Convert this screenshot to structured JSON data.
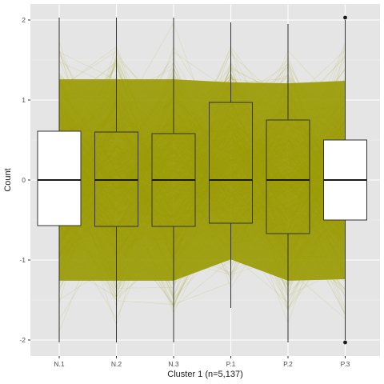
{
  "chart_data": {
    "type": "parallel-coordinates",
    "xlabel": "Cluster 1 (n=5,137)",
    "ylabel": "Count",
    "categories": [
      "N.1",
      "N.2",
      "N.3",
      "P.1",
      "P.2",
      "P.3"
    ],
    "yticks": [
      -2,
      -1,
      0,
      1,
      2
    ],
    "ylim": [
      -2.2,
      2.2
    ],
    "n": 5137,
    "line_color": "#999900",
    "panel_background": "#e5e5e5",
    "grid": true,
    "boxplots": [
      {
        "category": "N.1",
        "q1": -0.57,
        "median": 0.0,
        "q3": 0.61,
        "lower_whisker": -2.03,
        "upper_whisker": 2.03
      },
      {
        "category": "N.2",
        "q1": -0.58,
        "median": 0.0,
        "q3": 0.6,
        "lower_whisker": -2.03,
        "upper_whisker": 2.03
      },
      {
        "category": "N.3",
        "q1": -0.58,
        "median": 0.0,
        "q3": 0.58,
        "lower_whisker": -2.03,
        "upper_whisker": 2.03
      },
      {
        "category": "P.1",
        "q1": -0.54,
        "median": 0.0,
        "q3": 0.97,
        "lower_whisker": -1.6,
        "upper_whisker": 1.97
      },
      {
        "category": "P.2",
        "q1": -0.67,
        "median": 0.0,
        "q3": 0.75,
        "lower_whisker": -2.03,
        "upper_whisker": 1.95
      },
      {
        "category": "P.3",
        "q1": -0.5,
        "median": 0.0,
        "q3": 0.5,
        "lower_whisker": -2.0,
        "upper_whisker": 2.0,
        "outliers": [
          2.03,
          -2.03
        ]
      }
    ]
  }
}
